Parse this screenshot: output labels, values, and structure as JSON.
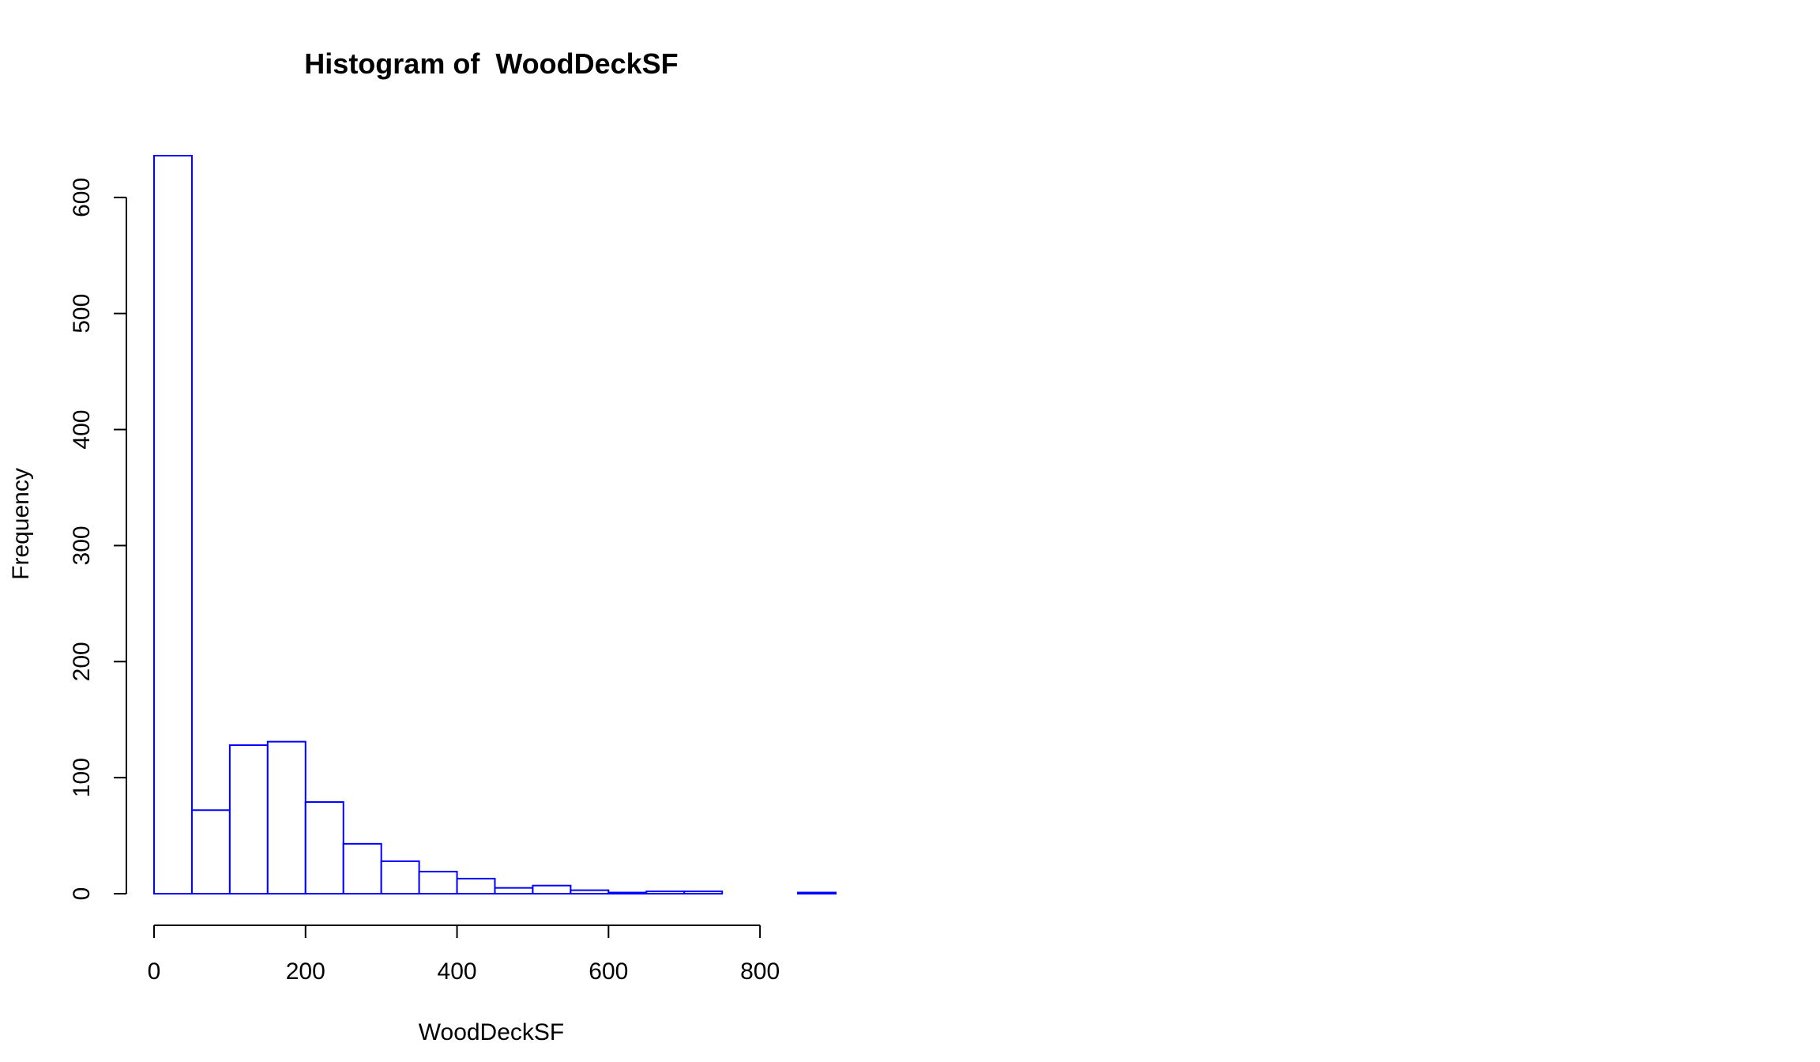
{
  "chart_data": {
    "type": "bar",
    "title": "Histogram of  WoodDeckSF",
    "xlabel": "WoodDeckSF",
    "ylabel": "Frequency",
    "bin_width": 50,
    "bins": [
      {
        "x0": 0,
        "x1": 50,
        "count": 636
      },
      {
        "x0": 50,
        "x1": 100,
        "count": 72
      },
      {
        "x0": 100,
        "x1": 150,
        "count": 128
      },
      {
        "x0": 150,
        "x1": 200,
        "count": 131
      },
      {
        "x0": 200,
        "x1": 250,
        "count": 79
      },
      {
        "x0": 250,
        "x1": 300,
        "count": 43
      },
      {
        "x0": 300,
        "x1": 350,
        "count": 28
      },
      {
        "x0": 350,
        "x1": 400,
        "count": 19
      },
      {
        "x0": 400,
        "x1": 450,
        "count": 13
      },
      {
        "x0": 450,
        "x1": 500,
        "count": 5
      },
      {
        "x0": 500,
        "x1": 550,
        "count": 7
      },
      {
        "x0": 550,
        "x1": 600,
        "count": 3
      },
      {
        "x0": 600,
        "x1": 650,
        "count": 1
      },
      {
        "x0": 650,
        "x1": 700,
        "count": 2
      },
      {
        "x0": 700,
        "x1": 750,
        "count": 2
      },
      {
        "x0": 750,
        "x1": 800,
        "count": 0
      },
      {
        "x0": 800,
        "x1": 850,
        "count": 0
      },
      {
        "x0": 850,
        "x1": 900,
        "count": 1
      }
    ],
    "xlim": [
      0,
      900
    ],
    "ylim": [
      0,
      636
    ],
    "x_ticks": [
      0,
      200,
      400,
      600,
      800
    ],
    "y_ticks": [
      0,
      100,
      200,
      300,
      400,
      500,
      600
    ],
    "x_tick_labels": [
      "0",
      "200",
      "400",
      "600",
      "800"
    ],
    "y_tick_labels": [
      "0",
      "100",
      "200",
      "300",
      "400",
      "500",
      "600"
    ],
    "grid": false,
    "colors": {
      "border": "#0000ff",
      "fill": "#ffffff",
      "axis": "#000000"
    }
  }
}
